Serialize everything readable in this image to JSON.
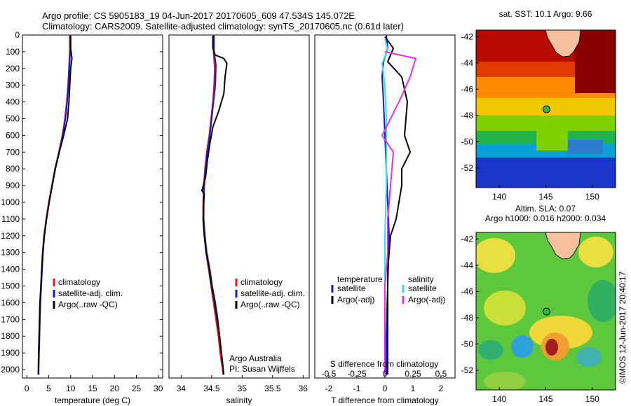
{
  "header": {
    "title_line1": "Argo profile: CS 5905183_19 04-Jun-2017 20170605_609 47.534S 145.072E",
    "title_line2": "Climatology: CARS2009. Satellite-adjusted climatology: synTS_20170605.nc (0.61d later)"
  },
  "credits": {
    "org": "Argo Australia",
    "pi": "PI: Susan Wijffels",
    "stamp": "©IMOS 12-Jun-2017 20:40:17"
  },
  "colors": {
    "red": "#e8141c",
    "blue": "#1414e6",
    "black": "#000000",
    "cyan": "#33dfef",
    "magenta": "#e82ee8",
    "land": "#f6c09d"
  },
  "chart_data": [
    {
      "type": "line",
      "id": "temperature",
      "xlabel": "temperature (deg C)",
      "ylabel": "",
      "xlim": [
        -1,
        31
      ],
      "ylim": [
        0,
        2050
      ],
      "xticks": [
        0,
        5,
        10,
        15,
        20,
        25,
        30
      ],
      "yticks": [
        0,
        100,
        200,
        300,
        400,
        500,
        600,
        700,
        800,
        900,
        1000,
        1100,
        1200,
        1300,
        1400,
        1500,
        1600,
        1700,
        1800,
        1900,
        2000
      ],
      "legend": [
        "climatology",
        "satellite-adj. clim.",
        "Argo(..raw -QC)"
      ],
      "series": [
        {
          "name": "climatology",
          "color": "red",
          "points": [
            [
              9.8,
              0
            ],
            [
              9.8,
              100
            ],
            [
              9.6,
              200
            ],
            [
              9.4,
              300
            ],
            [
              9.1,
              400
            ],
            [
              8.7,
              500
            ],
            [
              8.1,
              600
            ],
            [
              7.3,
              700
            ],
            [
              6.4,
              800
            ],
            [
              5.7,
              900
            ],
            [
              5.0,
              1000
            ],
            [
              4.4,
              1100
            ],
            [
              3.9,
              1200
            ],
            [
              3.6,
              1300
            ],
            [
              3.4,
              1400
            ],
            [
              3.2,
              1500
            ],
            [
              3.0,
              1600
            ],
            [
              2.9,
              1700
            ],
            [
              2.8,
              1800
            ],
            [
              2.7,
              1900
            ],
            [
              2.6,
              2000
            ],
            [
              2.6,
              2030
            ]
          ]
        },
        {
          "name": "satellite-adj. clim.",
          "color": "blue",
          "points": [
            [
              9.9,
              0
            ],
            [
              9.9,
              100
            ],
            [
              9.7,
              200
            ],
            [
              9.5,
              300
            ],
            [
              9.2,
              400
            ],
            [
              8.8,
              500
            ],
            [
              8.2,
              600
            ],
            [
              7.4,
              700
            ],
            [
              6.5,
              800
            ],
            [
              5.8,
              900
            ],
            [
              5.1,
              1000
            ],
            [
              4.5,
              1100
            ],
            [
              4.0,
              1200
            ],
            [
              3.7,
              1300
            ],
            [
              3.5,
              1400
            ],
            [
              3.3,
              1500
            ],
            [
              3.1,
              1600
            ],
            [
              3.0,
              1700
            ],
            [
              2.9,
              1800
            ],
            [
              2.8,
              1900
            ],
            [
              2.7,
              2000
            ],
            [
              2.7,
              2030
            ]
          ]
        },
        {
          "name": "Argo(..raw -QC)",
          "color": "black",
          "points": [
            [
              10.0,
              5
            ],
            [
              10.0,
              80
            ],
            [
              10.3,
              140
            ],
            [
              10.0,
              200
            ],
            [
              9.8,
              300
            ],
            [
              9.6,
              400
            ],
            [
              9.3,
              500
            ],
            [
              8.4,
              600
            ],
            [
              7.4,
              700
            ],
            [
              6.5,
              800
            ],
            [
              5.8,
              900
            ],
            [
              5.1,
              1000
            ],
            [
              4.5,
              1100
            ],
            [
              4.0,
              1200
            ],
            [
              3.6,
              1300
            ],
            [
              3.4,
              1400
            ],
            [
              3.2,
              1500
            ],
            [
              3.0,
              1600
            ],
            [
              2.9,
              1700
            ],
            [
              2.8,
              1800
            ],
            [
              2.7,
              1900
            ],
            [
              2.7,
              2000
            ],
            [
              2.7,
              2030
            ]
          ]
        }
      ]
    },
    {
      "type": "line",
      "id": "salinity",
      "xlabel": "salinity",
      "ylabel": "",
      "xlim": [
        33.8,
        36.1
      ],
      "ylim": [
        0,
        2050
      ],
      "xticks": [
        34,
        34.5,
        35,
        35.5,
        36
      ],
      "legend": [
        "climatology",
        "satellite-adj. clim.",
        "Argo(..raw -QC)"
      ],
      "series": [
        {
          "name": "climatology",
          "color": "red",
          "points": [
            [
              34.53,
              0
            ],
            [
              34.53,
              100
            ],
            [
              34.55,
              200
            ],
            [
              34.54,
              300
            ],
            [
              34.52,
              400
            ],
            [
              34.49,
              500
            ],
            [
              34.46,
              600
            ],
            [
              34.42,
              700
            ],
            [
              34.39,
              800
            ],
            [
              34.37,
              900
            ],
            [
              34.36,
              1000
            ],
            [
              34.36,
              1100
            ],
            [
              34.38,
              1200
            ],
            [
              34.41,
              1300
            ],
            [
              34.45,
              1400
            ],
            [
              34.49,
              1500
            ],
            [
              34.53,
              1600
            ],
            [
              34.57,
              1700
            ],
            [
              34.61,
              1800
            ],
            [
              34.64,
              1900
            ],
            [
              34.68,
              2000
            ],
            [
              34.69,
              2030
            ]
          ]
        },
        {
          "name": "satellite-adj. clim.",
          "color": "blue",
          "points": [
            [
              34.54,
              0
            ],
            [
              34.54,
              100
            ],
            [
              34.57,
              180
            ],
            [
              34.56,
              300
            ],
            [
              34.53,
              400
            ],
            [
              34.5,
              500
            ],
            [
              34.47,
              600
            ],
            [
              34.43,
              700
            ],
            [
              34.4,
              800
            ],
            [
              34.38,
              900
            ],
            [
              34.37,
              1000
            ],
            [
              34.37,
              1100
            ],
            [
              34.39,
              1200
            ],
            [
              34.42,
              1300
            ],
            [
              34.47,
              1400
            ],
            [
              34.51,
              1500
            ],
            [
              34.56,
              1600
            ],
            [
              34.6,
              1700
            ],
            [
              34.63,
              1800
            ],
            [
              34.66,
              1900
            ],
            [
              34.69,
              2000
            ],
            [
              34.69,
              2030
            ]
          ]
        },
        {
          "name": "Argo(..raw -QC)",
          "color": "black",
          "points": [
            [
              34.52,
              5
            ],
            [
              34.52,
              80
            ],
            [
              34.56,
              120
            ],
            [
              34.7,
              140
            ],
            [
              34.75,
              170
            ],
            [
              34.72,
              250
            ],
            [
              34.7,
              350
            ],
            [
              34.62,
              450
            ],
            [
              34.52,
              550
            ],
            [
              34.47,
              650
            ],
            [
              34.43,
              750
            ],
            [
              34.4,
              850
            ],
            [
              34.34,
              930
            ],
            [
              34.38,
              950
            ],
            [
              34.37,
              1000
            ],
            [
              34.36,
              1100
            ],
            [
              34.38,
              1200
            ],
            [
              34.41,
              1300
            ],
            [
              34.46,
              1400
            ],
            [
              34.5,
              1500
            ],
            [
              34.55,
              1600
            ],
            [
              34.59,
              1700
            ],
            [
              34.63,
              1800
            ],
            [
              34.66,
              1900
            ],
            [
              34.69,
              2000
            ],
            [
              34.7,
              2030
            ]
          ]
        }
      ]
    },
    {
      "type": "line",
      "id": "difference",
      "xlabel": "T difference from climatology",
      "xlabel_top": "S difference from climatology",
      "xlim": [
        -2.5,
        2.5
      ],
      "ylim": [
        0,
        2050
      ],
      "xticks_T": [
        -2,
        -1,
        0,
        1,
        2
      ],
      "xticks_S": [
        "-0.5",
        "-0.25",
        "0",
        "0.25",
        "0.5"
      ],
      "legend_headers": [
        "temperature",
        "salinity"
      ],
      "legend": [
        "satellite",
        "Argo(-adj)",
        "satellite",
        "Argo(-adj)"
      ],
      "series": [
        {
          "name": "satellite",
          "color": "blue",
          "points": [
            [
              0.05,
              0
            ],
            [
              0.1,
              80
            ],
            [
              -0.05,
              160
            ],
            [
              -0.1,
              250
            ],
            [
              -0.05,
              400
            ],
            [
              0.0,
              600
            ],
            [
              0.05,
              800
            ],
            [
              0.1,
              1000
            ],
            [
              0.15,
              1200
            ],
            [
              0.12,
              1400
            ],
            [
              0.08,
              1600
            ],
            [
              0.05,
              1800
            ],
            [
              0.05,
              2030
            ]
          ]
        },
        {
          "name": "Argo(-adj)",
          "color": "black",
          "points": [
            [
              0.0,
              10
            ],
            [
              0.3,
              80
            ],
            [
              0.1,
              160
            ],
            [
              0.6,
              250
            ],
            [
              0.8,
              400
            ],
            [
              0.7,
              600
            ],
            [
              0.9,
              700
            ],
            [
              0.6,
              800
            ],
            [
              0.6,
              900
            ],
            [
              0.5,
              1000
            ],
            [
              0.4,
              1100
            ],
            [
              0.2,
              1200
            ],
            [
              0.1,
              1400
            ],
            [
              0.1,
              1600
            ],
            [
              0.1,
              1800
            ],
            [
              0.1,
              2030
            ]
          ]
        },
        {
          "name": "satellite",
          "color": "cyan",
          "points": [
            [
              0.0,
              20
            ],
            [
              0.1,
              90
            ],
            [
              -0.1,
              170
            ],
            [
              0.0,
              300
            ],
            [
              0.05,
              500
            ],
            [
              0.05,
              700
            ],
            [
              0.05,
              900
            ],
            [
              0.0,
              1200
            ],
            [
              0.0,
              1500
            ],
            [
              0.0,
              1800
            ],
            [
              0.0,
              2030
            ]
          ]
        },
        {
          "name": "Argo(-adj)",
          "color": "magenta",
          "points": [
            [
              0.0,
              100
            ],
            [
              1.1,
              140
            ],
            [
              0.9,
              250
            ],
            [
              0.5,
              400
            ],
            [
              -0.1,
              600
            ],
            [
              0.3,
              700
            ],
            [
              0.2,
              900
            ],
            [
              0.1,
              1100
            ],
            [
              0.1,
              1300
            ],
            [
              0.0,
              1500
            ],
            [
              0.0,
              1800
            ],
            [
              0.0,
              2030
            ]
          ]
        }
      ]
    },
    {
      "type": "heatmap",
      "id": "sst-map",
      "title": "sat. SST: 10.1  Argo: 9.66",
      "xlim": [
        137.5,
        152.5
      ],
      "ylim": [
        -53.5,
        -41.5
      ],
      "xticks": [
        140,
        145,
        150
      ],
      "yticks": [
        -52,
        -50,
        -48,
        -46,
        -44,
        -42
      ],
      "marker": {
        "lon": 145.072,
        "lat": -47.534
      }
    },
    {
      "type": "heatmap",
      "id": "sla-map",
      "title_line1": "Altim. SLA: 0.07",
      "title_line2": "Argo h1000: 0.016 h2000: 0.034",
      "xlim": [
        137.5,
        152.5
      ],
      "ylim": [
        -53.5,
        -41.5
      ],
      "xticks": [
        140,
        145,
        150
      ],
      "yticks": [
        -52,
        -50,
        -48,
        -46,
        -44,
        -42
      ],
      "marker": {
        "lon": 145.072,
        "lat": -47.534
      }
    }
  ]
}
